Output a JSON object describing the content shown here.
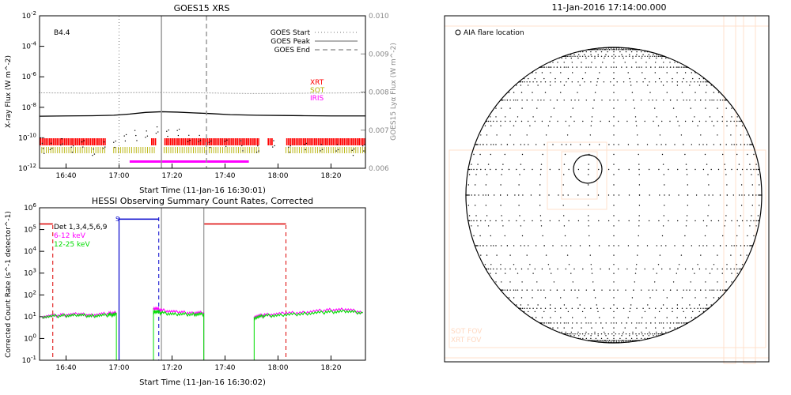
{
  "goes_panel": {
    "title": "GOES15 XRS",
    "xlabel": "Start Time (11-Jan-16 16:30:01)",
    "ylabel_left": "X-ray Flux (W m^-2)",
    "ylabel_right": "GOES15 Lyα Flux (W m^-2)",
    "class_label": "B4.4",
    "legend": [
      "GOES Start",
      "GOES Peak",
      "GOES End"
    ],
    "instrument_labels": [
      {
        "text": "XRT",
        "color": "#ff0000"
      },
      {
        "text": "SOT",
        "color": "#b5b000"
      },
      {
        "text": "IRIS",
        "color": "#ff00ff"
      }
    ]
  },
  "hessi_panel": {
    "title": "HESSI Observing Summary Count Rates, Corrected",
    "xlabel": "Start Time (11-Jan-16 16:30:02)",
    "ylabel": "Corrected Count Rate (s^-1 detector^-1)",
    "legend": [
      {
        "text": "Det 1,3,4,5,6,9",
        "color": "#000000"
      },
      {
        "text": "6-12 keV",
        "color": "#ff00ff"
      },
      {
        "text": "12-25 keV",
        "color": "#00dd00"
      }
    ],
    "s_marker": "S"
  },
  "sun_panel": {
    "title": "11-Jan-2016 17:14:00.000",
    "label": "AIA flare location",
    "faint_labels": [
      "SOT FOV",
      "XRT FOV"
    ]
  },
  "colors": {
    "xrt": "#ff0000",
    "sot": "#b5b000",
    "iris": "#ff00ff",
    "low": "#ff00ff",
    "high": "#00dd00",
    "atten": "#dd0000",
    "night": "#0000cc",
    "fov": "#ffe0cc"
  },
  "chart_data": [
    {
      "type": "line",
      "title": "GOES15 XRS",
      "xlabel": "Start Time (11-Jan-16 16:30:01)",
      "xticks": [
        "16:40",
        "17:00",
        "17:20",
        "17:40",
        "18:00",
        "18:20"
      ],
      "xlim": [
        0,
        123
      ],
      "ylabel": "X-ray Flux (W m^-2)",
      "yscale": "log",
      "ylim": [
        1e-12,
        0.01
      ],
      "yticks": [
        "10^-12",
        "10^-10",
        "10^-8",
        "10^-6",
        "10^-4",
        "10^-2"
      ],
      "y2label": "GOES15 Lyα Flux (W m^-2)",
      "y2lim": [
        0.006,
        0.01
      ],
      "y2ticks": [
        "0.006",
        "0.007",
        "0.008",
        "0.009",
        "0.010"
      ],
      "legend_position": "top-right",
      "flare": {
        "class": "B4.4",
        "start": 30,
        "peak": 46,
        "end": 63
      },
      "series": [
        {
          "name": "long",
          "x": [
            0,
            10,
            20,
            28,
            34,
            40,
            46,
            52,
            58,
            64,
            72,
            82,
            92,
            100,
            110,
            123
          ],
          "y": [
            2.6e-09,
            2.7e-09,
            2.8e-09,
            3e-09,
            3.6e-09,
            4.6e-09,
            5.1e-09,
            4.8e-09,
            4.3e-09,
            3.9e-09,
            3.3e-09,
            3e-09,
            2.9e-09,
            2.8e-09,
            2.7e-09,
            2.7e-09
          ]
        },
        {
          "name": "lya",
          "x": [
            0,
            20,
            40,
            60,
            80,
            100,
            123
          ],
          "y": [
            0.00798,
            0.00797,
            0.00799,
            0.00798,
            0.00796,
            0.00797,
            0.00798
          ]
        },
        {
          "name": "short",
          "x": [
            1,
            4,
            8,
            12,
            16,
            20,
            24,
            28,
            32,
            36,
            40,
            44,
            48,
            52,
            56,
            60,
            64,
            70,
            76,
            82,
            88,
            94,
            100,
            106,
            112,
            118,
            122
          ],
          "y": [
            2e-11,
            3e-11,
            4e-11,
            2e-11,
            3e-11,
            1.5e-11,
            3e-11,
            5e-11,
            9e-11,
            1.4e-10,
            1.9e-10,
            2.4e-10,
            2.2e-10,
            1.7e-10,
            1.2e-10,
            8e-11,
            5e-11,
            4e-11,
            3e-11,
            2e-11,
            3e-11,
            2e-11,
            2e-11,
            3e-11,
            2e-11,
            1.5e-11,
            2e-11
          ]
        }
      ],
      "xrt_intervals": [
        [
          0,
          25
        ],
        [
          42,
          44
        ],
        [
          47,
          83
        ],
        [
          86,
          88
        ],
        [
          93,
          123
        ]
      ],
      "sot_intervals": [
        [
          0,
          25
        ],
        [
          28,
          44
        ],
        [
          47,
          83
        ],
        [
          93,
          123
        ]
      ],
      "iris_interval": [
        34,
        79
      ]
    },
    {
      "type": "line",
      "title": "HESSI Observing Summary Count Rates, Corrected",
      "xlabel": "Start Time (11-Jan-16 16:30:02)",
      "xticks": [
        "16:40",
        "17:00",
        "17:20",
        "17:40",
        "18:00",
        "18:20"
      ],
      "xlim": [
        0,
        123
      ],
      "ylabel": "Corrected Count Rate (s^-1 detector^-1)",
      "yscale": "log",
      "ylim": [
        0.1,
        1000000.0
      ],
      "yticks": [
        "10^-1",
        "10^0",
        "10^1",
        "10^2",
        "10^3",
        "10^4",
        "10^5",
        "10^6"
      ],
      "legend_position": "top-left",
      "series": [
        {
          "name": "6-12 keV",
          "segments": [
            {
              "x": [
                1,
                8,
                14,
                20,
                26,
                29
              ],
              "y": [
                10,
                12,
                13,
                12,
                14,
                15
              ]
            },
            {
              "x": [
                43,
                46,
                52,
                58,
                62
              ],
              "y": [
                25,
                20,
                16,
                15,
                15
              ]
            },
            {
              "x": [
                81,
                85,
                92,
                100,
                108,
                115,
                122
              ],
              "y": [
                10,
                12,
                14,
                16,
                20,
                22,
                16
              ]
            }
          ]
        },
        {
          "name": "12-25 keV",
          "segments": [
            {
              "x": [
                1,
                8,
                14,
                20,
                26,
                29
              ],
              "y": [
                10,
                11,
                12,
                11,
                12,
                13
              ]
            },
            {
              "x": [
                43,
                46,
                52,
                58,
                62
              ],
              "y": [
                18,
                15,
                13,
                13,
                13
              ]
            },
            {
              "x": [
                81,
                85,
                92,
                100,
                108,
                115,
                122
              ],
              "y": [
                9,
                11,
                12,
                14,
                16,
                18,
                15
              ]
            }
          ]
        }
      ],
      "attenuator_segments": [
        [
          0,
          5,
          180000
        ],
        [
          62,
          93,
          180000
        ]
      ],
      "night_segments": [
        [
          30,
          45,
          300000
        ]
      ],
      "red_dashed_x": [
        5,
        93
      ],
      "blue_dashed_x": [
        45
      ],
      "blue_solid_x": [
        30
      ],
      "gray_x": [
        46,
        62
      ]
    }
  ]
}
